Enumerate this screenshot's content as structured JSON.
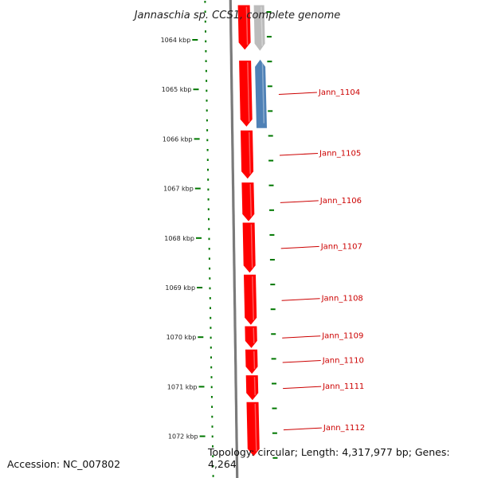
{
  "title": "Jannaschia sp. CCS1, complete genome",
  "footer": {
    "accession": "Accession: NC_007802",
    "topology": "Topology: circular; Length: 4,317,977 bp; Genes: 4,264"
  },
  "colors": {
    "forward_gene": "#ff0000",
    "reverse_gene": "#4f81b6",
    "other_gene": "#bcbcbc",
    "ruler_tick": "#007700",
    "backbone": "#7a7a7a",
    "label": "#cc0000"
  },
  "ruler": {
    "unit": "kbp",
    "ticks": [
      {
        "kbp": 1064,
        "label": "1064 kbp"
      },
      {
        "kbp": 1065,
        "label": "1065 kbp"
      },
      {
        "kbp": 1066,
        "label": "1066 kbp"
      },
      {
        "kbp": 1067,
        "label": "1067 kbp"
      },
      {
        "kbp": 1068,
        "label": "1068 kbp"
      },
      {
        "kbp": 1069,
        "label": "1069 kbp"
      },
      {
        "kbp": 1070,
        "label": "1070 kbp"
      },
      {
        "kbp": 1071,
        "label": "1071 kbp"
      },
      {
        "kbp": 1072,
        "label": "1072 kbp"
      }
    ]
  },
  "genes": [
    {
      "name": "",
      "start_kbp": 1063.3,
      "end_kbp": 1064.2,
      "strand": "+",
      "color": "#ff0000"
    },
    {
      "name": "",
      "start_kbp": 1063.3,
      "end_kbp": 1064.22,
      "strand": "+",
      "color": "#bcbcbc"
    },
    {
      "name": "Jann_1104",
      "start_kbp": 1064.42,
      "end_kbp": 1065.75,
      "strand": "+",
      "color": "#ff0000"
    },
    {
      "name": "",
      "start_kbp": 1064.4,
      "end_kbp": 1065.78,
      "strand": "-",
      "color": "#4f81b6"
    },
    {
      "name": "Jann_1105",
      "start_kbp": 1065.83,
      "end_kbp": 1066.8,
      "strand": "+",
      "color": "#ff0000"
    },
    {
      "name": "Jann_1106",
      "start_kbp": 1066.88,
      "end_kbp": 1067.66,
      "strand": "+",
      "color": "#ff0000"
    },
    {
      "name": "Jann_1107",
      "start_kbp": 1067.69,
      "end_kbp": 1068.7,
      "strand": "+",
      "color": "#ff0000"
    },
    {
      "name": "Jann_1108",
      "start_kbp": 1068.74,
      "end_kbp": 1069.75,
      "strand": "+",
      "color": "#ff0000"
    },
    {
      "name": "Jann_1109",
      "start_kbp": 1069.78,
      "end_kbp": 1070.22,
      "strand": "+",
      "color": "#ff0000"
    },
    {
      "name": "Jann_1110",
      "start_kbp": 1070.25,
      "end_kbp": 1070.74,
      "strand": "+",
      "color": "#ff0000"
    },
    {
      "name": "Jann_1111",
      "start_kbp": 1070.77,
      "end_kbp": 1071.27,
      "strand": "+",
      "color": "#ff0000"
    },
    {
      "name": "Jann_1112",
      "start_kbp": 1071.31,
      "end_kbp": 1072.4,
      "strand": "+",
      "color": "#ff0000"
    }
  ]
}
